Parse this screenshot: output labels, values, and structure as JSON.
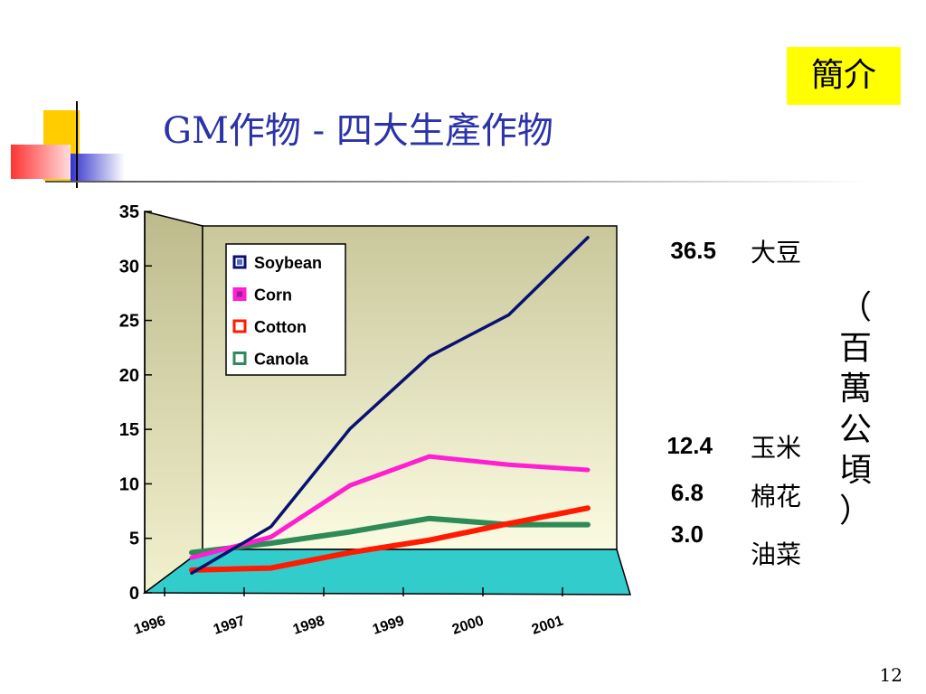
{
  "slide": {
    "title": "GM作物 - 四大生產作物",
    "badge": "簡介",
    "page_number": "12",
    "unit_label": [
      "（",
      "百",
      "萬",
      "公",
      "頃",
      "）"
    ]
  },
  "summary": [
    {
      "value": "36.5",
      "crop": "大豆"
    },
    {
      "value": "12.4",
      "crop": "玉米"
    },
    {
      "value": "6.8",
      "crop": "棉花"
    },
    {
      "value": "3.0",
      "crop": "油菜"
    }
  ],
  "chart_data": {
    "type": "line",
    "x": [
      "1996",
      "1997",
      "1998",
      "1999",
      "2000",
      "2001"
    ],
    "ylim": [
      0,
      35
    ],
    "y_ticks": [
      "0",
      "5",
      "10",
      "15",
      "20",
      "25",
      "30",
      "35"
    ],
    "legend_position": "top-left",
    "series": [
      {
        "name": "Soybean",
        "color": "#0a1170",
        "values": [
          0.5,
          5.0,
          14.5,
          21.5,
          25.5,
          33.0
        ]
      },
      {
        "name": "Corn",
        "color": "#ff1ed2",
        "values": [
          2.0,
          4.0,
          9.0,
          11.8,
          11.0,
          10.5
        ]
      },
      {
        "name": "Cotton",
        "color": "#ff1a00",
        "values": [
          0.8,
          1.0,
          2.5,
          3.7,
          5.3,
          6.8
        ]
      },
      {
        "name": "Canola",
        "color": "#2e8b57",
        "values": [
          2.5,
          3.4,
          4.5,
          5.8,
          5.2,
          5.2
        ]
      }
    ]
  }
}
